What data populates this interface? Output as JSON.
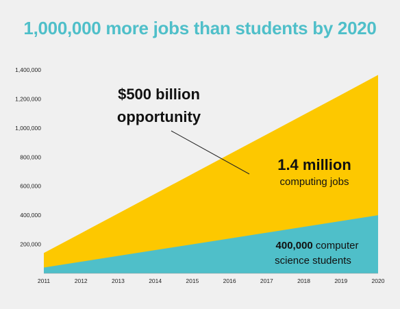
{
  "chart_data": {
    "type": "area",
    "title": "1,000,000 more jobs than students by 2020",
    "x": [
      2011,
      2012,
      2013,
      2014,
      2015,
      2016,
      2017,
      2018,
      2019,
      2020
    ],
    "series": [
      {
        "values": [
          140000,
          276000,
          412000,
          548000,
          684000,
          820000,
          956000,
          1092000,
          1228000,
          1365000
        ]
      },
      {
        "values": [
          40000,
          80000,
          120000,
          160000,
          200000,
          240000,
          280000,
          320000,
          360000,
          400000
        ]
      }
    ],
    "ylim": [
      0,
      1400000
    ],
    "xlim": [
      2011,
      2020
    ],
    "yticks": [
      "1,400,000",
      "1,200,000",
      "1,000,000",
      "800,000",
      "600,000",
      "400,000",
      "200,000"
    ],
    "xticks": [
      "2011",
      "2012",
      "2013",
      "2014",
      "2015",
      "2016",
      "2017",
      "2018",
      "2019",
      "2020"
    ],
    "grid": false,
    "colors": {
      "jobs": "#fdc800",
      "students": "#4fbfc9",
      "title": "#4fbfc9"
    },
    "annotations": {
      "opportunity_line1": "$500 billion",
      "opportunity_line2": "opportunity",
      "jobs_line1": "1.4 million",
      "jobs_line2": "computing jobs",
      "students_bold": "400,000",
      "students_line1_rest": " computer",
      "students_line2": "science students"
    }
  }
}
